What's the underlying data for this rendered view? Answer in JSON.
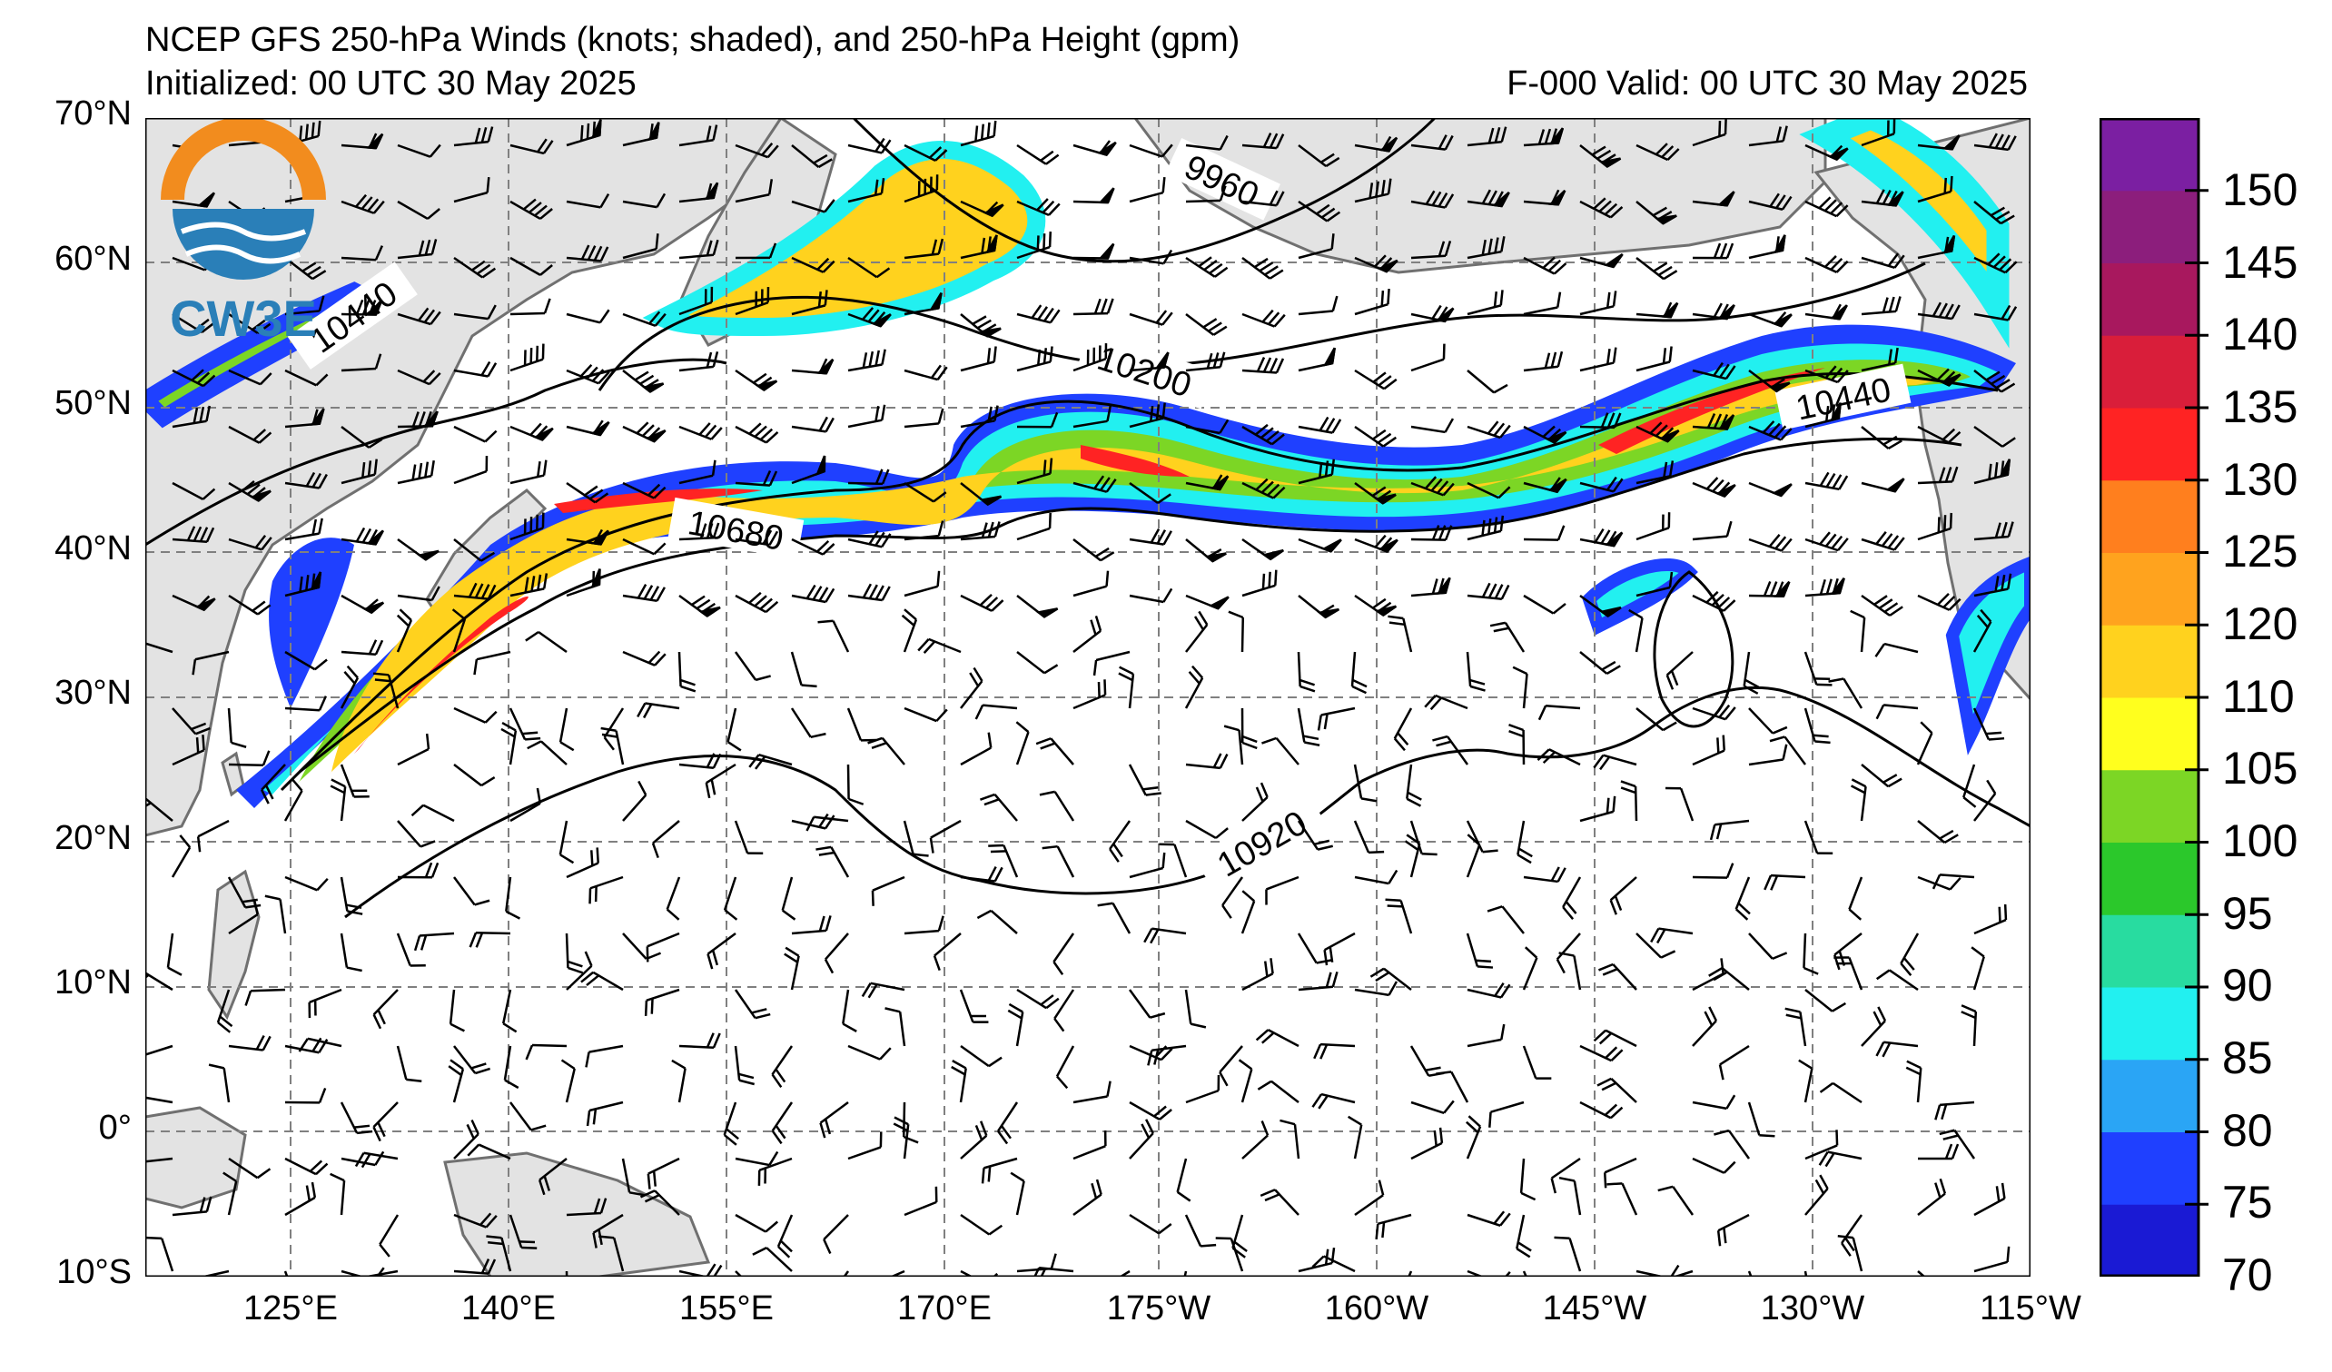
{
  "header": {
    "title": "NCEP GFS 250-hPa Winds (knots; shaded), and 250-hPa Height (gpm)",
    "initialized": "Initialized: 00 UTC 30 May 2025",
    "valid": "F-000  Valid: 00 UTC 30 May 2025"
  },
  "logo": {
    "text": "CW3E"
  },
  "map": {
    "lat_labels": [
      "70°N",
      "60°N",
      "50°N",
      "40°N",
      "30°N",
      "20°N",
      "10°N",
      "0°",
      "10°S"
    ],
    "lon_labels": [
      "125°E",
      "140°E",
      "155°E",
      "170°E",
      "175°W",
      "160°W",
      "145°W",
      "130°W",
      "115°W"
    ],
    "land_color": "#e3e3e3",
    "coast_color": "#707070",
    "grid": true
  },
  "contours": {
    "labels": [
      "9960",
      "10200",
      "10440",
      "10680",
      "10920",
      "10440"
    ]
  },
  "colorbar": {
    "levels": [
      70,
      75,
      80,
      85,
      90,
      95,
      100,
      105,
      110,
      120,
      125,
      130,
      135,
      140,
      145,
      150
    ],
    "labels": [
      "150",
      "145",
      "140",
      "135",
      "130",
      "125",
      "120",
      "110",
      "105",
      "100",
      "95",
      "90",
      "85",
      "80",
      "75",
      "70"
    ],
    "colors": [
      "#1a1ad4",
      "#1f40ff",
      "#2aa5f5",
      "#22f0f0",
      "#28dca0",
      "#2bc82b",
      "#7cd625",
      "#ffff1e",
      "#ffd21e",
      "#ffa31e",
      "#ff7f1e",
      "#ff2323",
      "#d91e3a",
      "#a8185e",
      "#8c1e7c",
      "#7b1fa2"
    ]
  }
}
